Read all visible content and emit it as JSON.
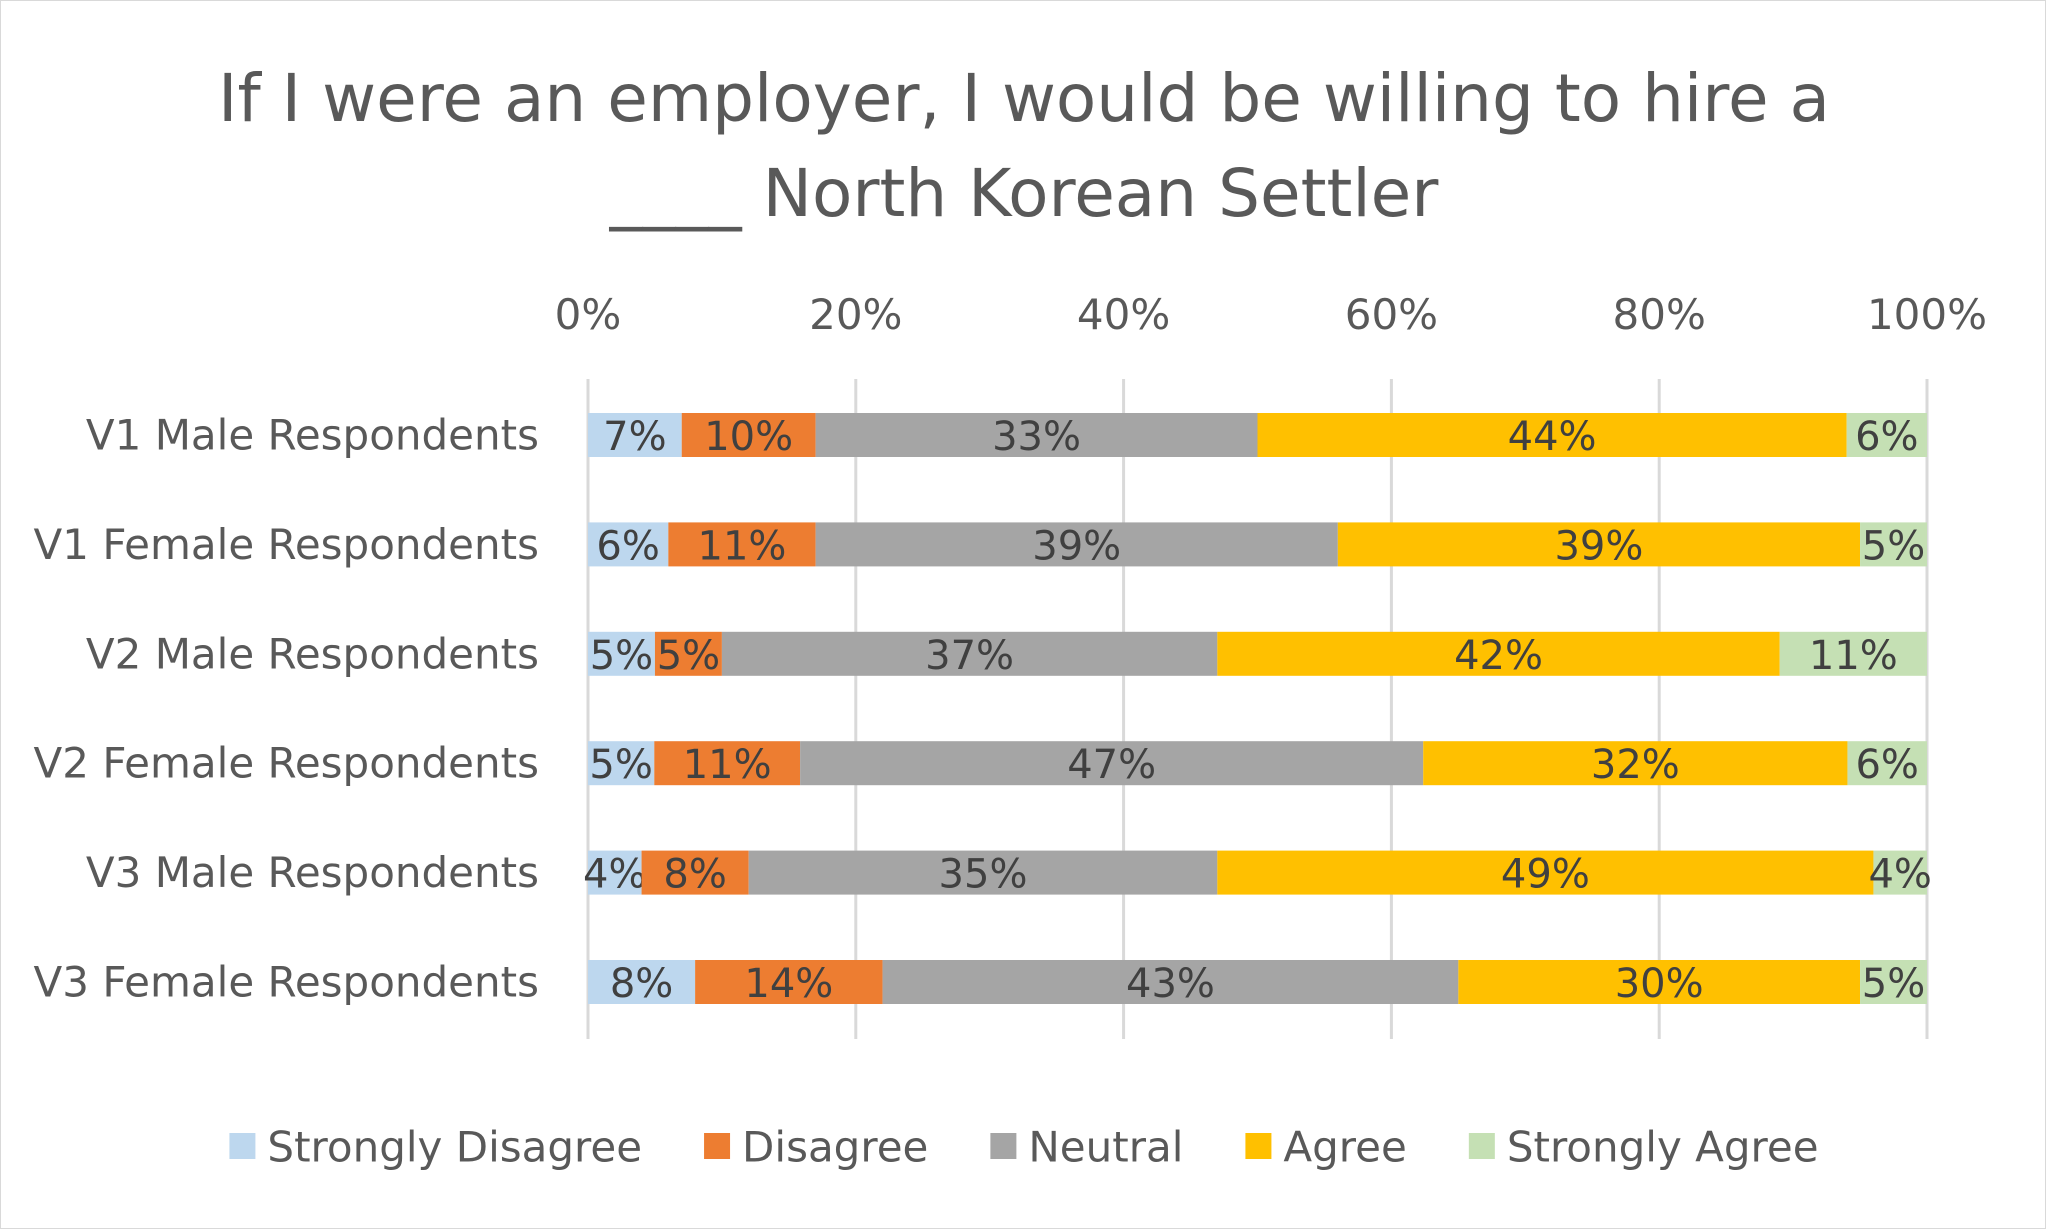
{
  "chart_data": {
    "type": "bar",
    "orientation": "horizontal",
    "stacked": "percent",
    "title": "If I were an employer, I would be willing to hire a ____ North Korean Settler",
    "title_lines": [
      "If I were an employer, I would be willing to hire a",
      "____ North Korean Settler"
    ],
    "categories": [
      "V1 Male Respondents",
      "V1 Female Respondents",
      "V2 Male Respondents",
      "V2 Female Respondents",
      "V3 Male Respondents",
      "V3 Female Respondents"
    ],
    "x_ticks": [
      "0%",
      "20%",
      "40%",
      "60%",
      "80%",
      "100%"
    ],
    "xlim": [
      0,
      100
    ],
    "x_axis_position": "top",
    "grid": true,
    "legend_position": "bottom",
    "series": [
      {
        "name": "Strongly Disagree",
        "color": "#bdd7ee",
        "values": [
          7,
          6,
          5,
          5,
          4,
          8
        ],
        "labels": [
          "7%",
          "6%",
          "5%",
          "5%",
          "4%",
          "8%"
        ]
      },
      {
        "name": "Disagree",
        "color": "#ed7d31",
        "values": [
          10,
          11,
          5,
          11,
          8,
          14
        ],
        "labels": [
          "10%",
          "11%",
          "5%",
          "11%",
          "8%",
          "14%"
        ]
      },
      {
        "name": "Neutral",
        "color": "#a5a5a5",
        "values": [
          33,
          39,
          37,
          47,
          35,
          43
        ],
        "labels": [
          "33%",
          "39%",
          "37%",
          "47%",
          "35%",
          "43%"
        ]
      },
      {
        "name": "Agree",
        "color": "#ffc000",
        "values": [
          44,
          39,
          42,
          32,
          49,
          30
        ],
        "labels": [
          "44%",
          "39%",
          "42%",
          "32%",
          "49%",
          "30%"
        ]
      },
      {
        "name": "Strongly Agree",
        "color": "#c5e0b4",
        "values": [
          6,
          5,
          11,
          6,
          4,
          5
        ],
        "labels": [
          "6%",
          "5%",
          "11%",
          "6%",
          "4%",
          "5%"
        ]
      }
    ]
  }
}
